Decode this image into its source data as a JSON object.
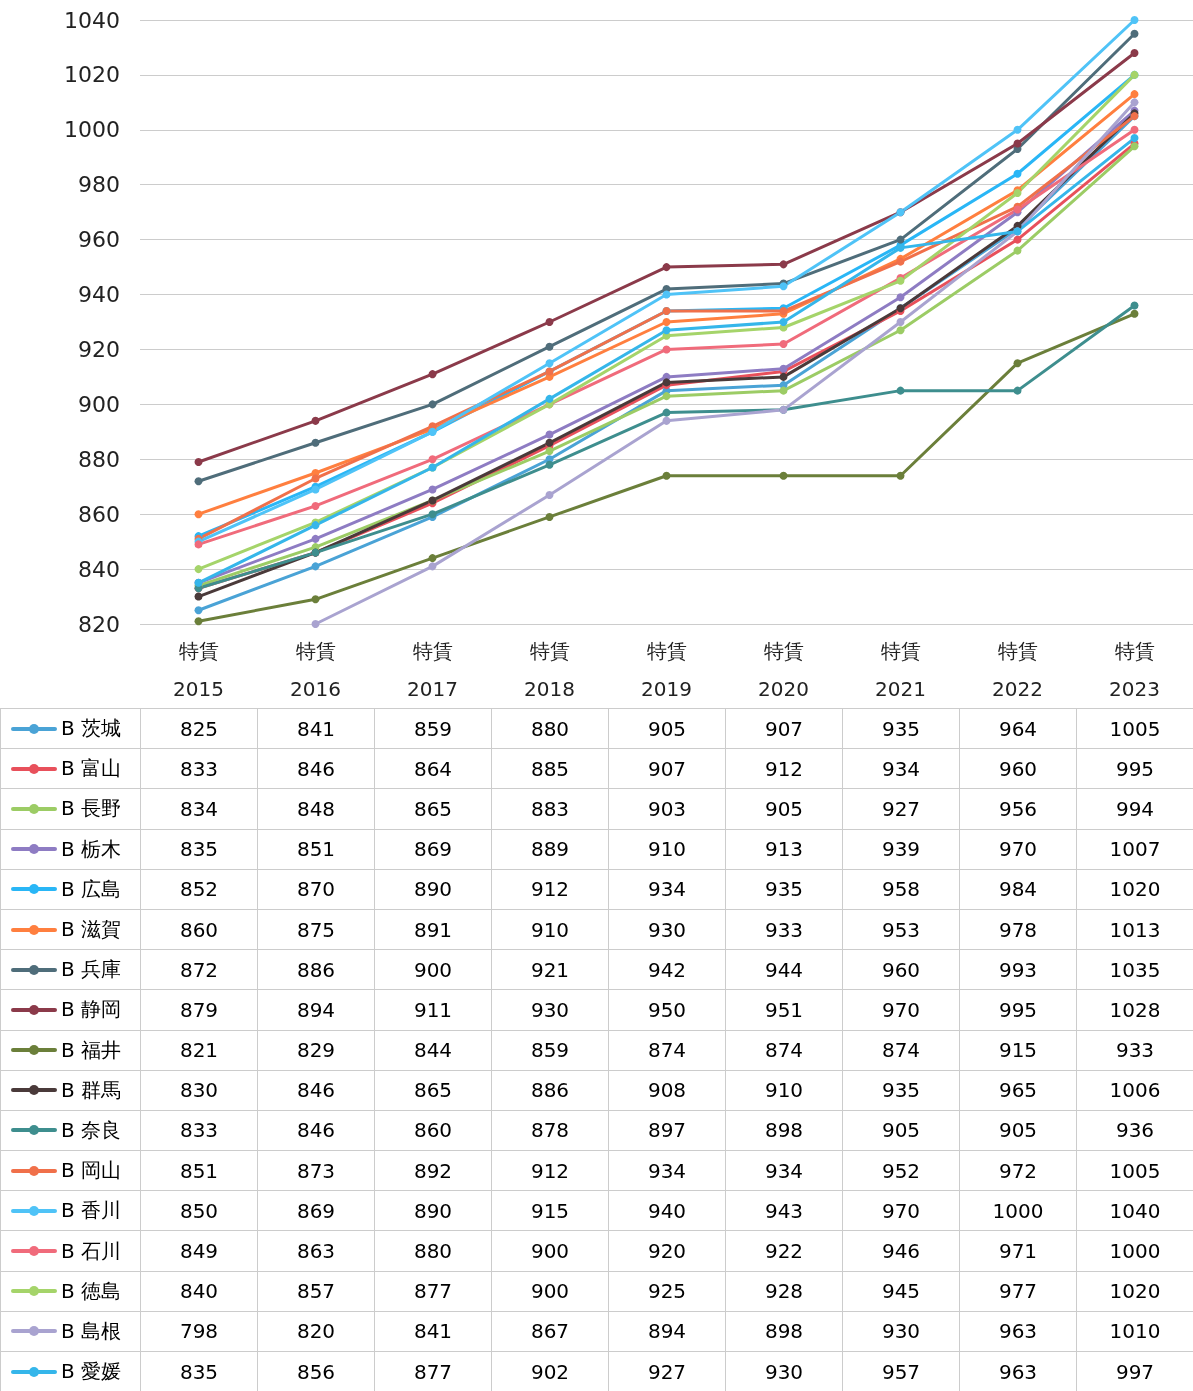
{
  "chart_data": {
    "type": "line",
    "categories": [
      "特賃\n2015",
      "特賃\n2016",
      "特賃\n2017",
      "特賃\n2018",
      "特賃\n2019",
      "特賃\n2020",
      "特賃\n2021",
      "特賃\n2022",
      "特賃\n2023"
    ],
    "series": [
      {
        "name": "B 茨城",
        "color": "#4aa3d6",
        "values": [
          825,
          841,
          859,
          880,
          905,
          907,
          935,
          964,
          1005
        ],
        "value_labels": [
          "825",
          "841",
          "859",
          "880",
          "905",
          "907",
          "935",
          "964",
          "1005"
        ]
      },
      {
        "name": "B 富山",
        "color": "#e8505b",
        "values": [
          833,
          846,
          864,
          885,
          907,
          912,
          934,
          960,
          995
        ],
        "value_labels": [
          "833",
          "846",
          "864",
          "885",
          "907",
          "912",
          "934",
          "960",
          "995"
        ]
      },
      {
        "name": "B 長野",
        "color": "#9ccc65",
        "values": [
          834,
          848,
          865,
          883,
          903,
          905,
          927,
          956,
          994
        ],
        "value_labels": [
          "834",
          "848",
          "865",
          "883",
          "903",
          "905",
          "927",
          "956",
          "994"
        ]
      },
      {
        "name": "B 栃木",
        "color": "#8e7cc3",
        "values": [
          835,
          851,
          869,
          889,
          910,
          913,
          939,
          970,
          1007
        ],
        "value_labels": [
          "835",
          "851",
          "869",
          "889",
          "910",
          "913",
          "939",
          "970",
          "1007"
        ]
      },
      {
        "name": "B 広島",
        "color": "#29b6f6",
        "values": [
          852,
          870,
          890,
          912,
          934,
          935,
          958,
          984,
          1020
        ],
        "value_labels": [
          "852",
          "870",
          "890",
          "912",
          "934",
          "935",
          "958",
          "984",
          "1020"
        ]
      },
      {
        "name": "B 滋賀",
        "color": "#ff7f3f",
        "values": [
          860,
          875,
          891,
          910,
          930,
          933,
          953,
          978,
          1013
        ],
        "value_labels": [
          "860",
          "875",
          "891",
          "910",
          "930",
          "933",
          "953",
          "978",
          "1013"
        ]
      },
      {
        "name": "B 兵庫",
        "color": "#4f6d7a",
        "values": [
          872,
          886,
          900,
          921,
          942,
          944,
          960,
          993,
          1035
        ],
        "value_labels": [
          "872",
          "886",
          "900",
          "921",
          "942",
          "944",
          "960",
          "993",
          "1035"
        ]
      },
      {
        "name": "B 静岡",
        "color": "#8b3a4a",
        "values": [
          879,
          894,
          911,
          930,
          950,
          951,
          970,
          995,
          1028
        ],
        "value_labels": [
          "879",
          "894",
          "911",
          "930",
          "950",
          "951",
          "970",
          "995",
          "1028"
        ]
      },
      {
        "name": "B 福井",
        "color": "#6b7f3a",
        "values": [
          821,
          829,
          844,
          859,
          874,
          874,
          874,
          915,
          933
        ],
        "value_labels": [
          "821",
          "829",
          "844",
          "859",
          "874",
          "874",
          "874",
          "915",
          "933"
        ]
      },
      {
        "name": "B 群馬",
        "color": "#4a3a3a",
        "values": [
          830,
          846,
          865,
          886,
          908,
          910,
          935,
          965,
          1006
        ],
        "value_labels": [
          "830",
          "846",
          "865",
          "886",
          "908",
          "910",
          "935",
          "965",
          "1006"
        ]
      },
      {
        "name": "B 奈良",
        "color": "#3e8e8e",
        "values": [
          833,
          846,
          860,
          878,
          897,
          898,
          905,
          905,
          936
        ],
        "value_labels": [
          "833",
          "846",
          "860",
          "878",
          "897",
          "898",
          "905",
          "905",
          "936"
        ]
      },
      {
        "name": "B 岡山",
        "color": "#f0704a",
        "values": [
          851,
          873,
          892,
          912,
          934,
          934,
          952,
          972,
          1005
        ],
        "value_labels": [
          "851",
          "873",
          "892",
          "912",
          "934",
          "934",
          "952",
          "972",
          "1005"
        ]
      },
      {
        "name": "B 香川",
        "color": "#4fc3f7",
        "values": [
          850,
          869,
          890,
          915,
          940,
          943,
          970,
          1000,
          1040
        ],
        "value_labels": [
          "850",
          "869",
          "890",
          "915",
          "940",
          "943",
          "970",
          "1000",
          "1040"
        ]
      },
      {
        "name": "B 石川",
        "color": "#f06b7b",
        "values": [
          849,
          863,
          880,
          900,
          920,
          922,
          946,
          971,
          1000
        ],
        "value_labels": [
          "849",
          "863",
          "880",
          "900",
          "920",
          "922",
          "946",
          "971",
          "1000"
        ]
      },
      {
        "name": "B 徳島",
        "color": "#a5d46a",
        "values": [
          840,
          857,
          877,
          900,
          925,
          928,
          945,
          977,
          1020
        ],
        "value_labels": [
          "840",
          "857",
          "877",
          "900",
          "925",
          "928",
          "945",
          "977",
          "1020"
        ]
      },
      {
        "name": "B 島根",
        "color": "#a9a3d0",
        "values": [
          null,
          820,
          841,
          867,
          894,
          898,
          930,
          963,
          1010
        ],
        "value_labels": [
          "798",
          "820",
          "841",
          "867",
          "894",
          "898",
          "930",
          "963",
          "1010"
        ]
      },
      {
        "name": "B 愛媛",
        "color": "#35b6ea",
        "values": [
          835,
          856,
          877,
          902,
          927,
          930,
          957,
          963,
          997
        ],
        "value_labels": [
          "835",
          "856",
          "877",
          "902",
          "927",
          "930",
          "957",
          "963",
          "997"
        ]
      }
    ],
    "ylim": [
      820,
      1040
    ],
    "yticks": [
      820,
      840,
      860,
      880,
      900,
      920,
      940,
      960,
      980,
      1000,
      1020,
      1040
    ],
    "grid": "y",
    "legend": "bottom",
    "marker": "circle",
    "line_style": "solid"
  }
}
